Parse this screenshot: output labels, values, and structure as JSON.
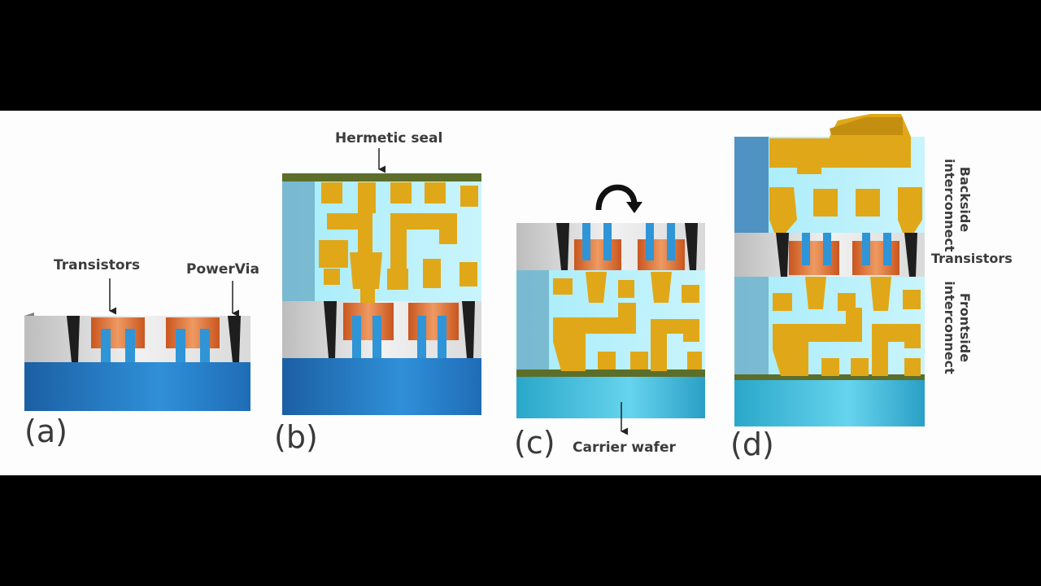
{
  "diagram": {
    "labels": {
      "transistors": "Transistors",
      "powervia": "PowerVia",
      "hermetic_seal": "Hermetic seal",
      "carrier_wafer": "Carrier wafer",
      "transistors_d": "Transistors",
      "backside_line1": "Backside",
      "backside_line2": "interconnect",
      "frontside_line1": "Frontside",
      "frontside_line2": "interconnect"
    },
    "panels": {
      "a": "(a)",
      "b": "(b)",
      "c": "(c)",
      "d": "(d)"
    },
    "colors": {
      "substrate": "#1e7bc4",
      "dielectric": "#8fe4f5",
      "metal": "#e0a818",
      "transistor": "#d06a2c",
      "seal": "#5c6e2a",
      "contact": "#2f95d6",
      "gray": "#9a9a9a"
    }
  }
}
